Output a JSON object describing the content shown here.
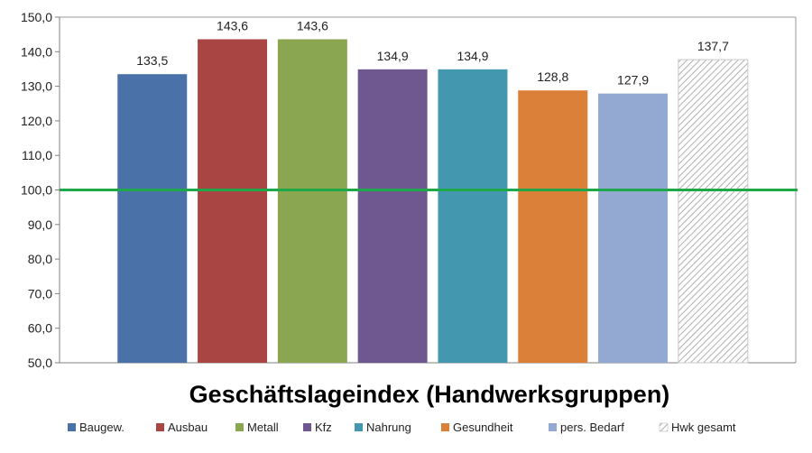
{
  "chart_data": {
    "type": "bar",
    "title": "Geschäftslageindex (Handwerksgruppen)",
    "categories": [
      "Baugew.",
      "Ausbau",
      "Metall",
      "Kfz",
      "Nahrung",
      "Gesundheit",
      "pers. Bedarf",
      "Hwk gesamt"
    ],
    "values": [
      133.5,
      143.6,
      143.6,
      134.9,
      134.9,
      128.8,
      127.9,
      137.7
    ],
    "data_labels": [
      "133,5",
      "143,6",
      "143,6",
      "134,9",
      "134,9",
      "128,8",
      "127,9",
      "137,7"
    ],
    "colors": [
      "#4a72a8",
      "#a94542",
      "#8aa650",
      "#6f578f",
      "#4398b0",
      "#db8039",
      "#93a9d1",
      "hatched"
    ],
    "ylim": [
      50,
      150
    ],
    "yticks": [
      50,
      60,
      70,
      80,
      90,
      100,
      110,
      120,
      130,
      140,
      150
    ],
    "ytick_labels": [
      "50,0",
      "60,0",
      "70,0",
      "80,0",
      "90,0",
      "100,0",
      "110,0",
      "120,0",
      "130,0",
      "140,0",
      "150,0"
    ],
    "reference_line": {
      "value": 100,
      "color": "#1fa84a"
    },
    "legend": [
      "Baugew.",
      "Ausbau",
      "Metall",
      "Kfz",
      "Nahrung",
      "Gesundheit",
      "pers. Bedarf",
      "Hwk gesamt"
    ],
    "legend_position": "bottom",
    "grid": false
  }
}
